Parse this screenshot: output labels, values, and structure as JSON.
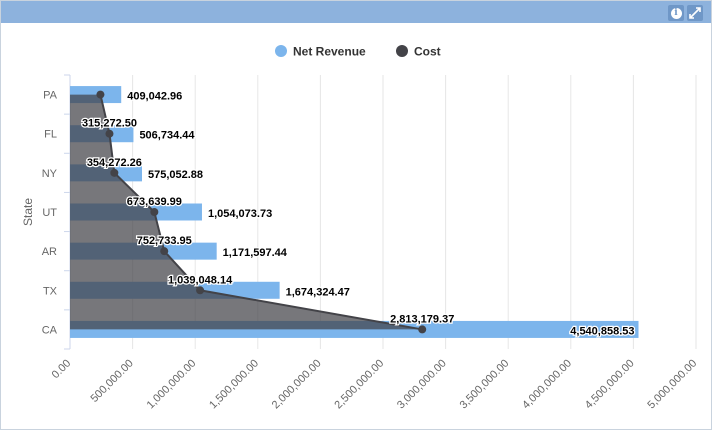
{
  "panel": {
    "info_icon": "info-icon",
    "expand_icon": "expand-icon"
  },
  "colors": {
    "net_revenue": "#7cb5ec",
    "cost": "#434348",
    "header": "#8db2dd",
    "gridline": "#e6e6e6"
  },
  "chart_data": {
    "type": "bar",
    "orientation": "horizontal",
    "title": "",
    "xlabel": "",
    "ylabel": "State",
    "categories": [
      "PA",
      "FL",
      "NY",
      "UT",
      "AR",
      "TX",
      "CA"
    ],
    "series": [
      {
        "name": "Net Revenue",
        "type": "bar",
        "values": [
          409042.96,
          506734.44,
          575052.88,
          1054073.73,
          1171597.44,
          1674324.47,
          4540858.53
        ],
        "labels": [
          "409,042.96",
          "506,734.44",
          "575,052.88",
          "1,054,073.73",
          "1,171,597.44",
          "1,674,324.47",
          "4,540,858.53"
        ]
      },
      {
        "name": "Cost",
        "type": "area",
        "values": [
          243000,
          315272.5,
          354272.26,
          673639.99,
          752733.95,
          1039048.14,
          2813179.37
        ],
        "labels": [
          "",
          "315,272.50",
          "354,272.26",
          "673,639.99",
          "752,733.95",
          "1,039,048.14",
          "2,813,179.37"
        ]
      }
    ],
    "xlim": [
      0,
      5000000
    ],
    "xticks": [
      0,
      500000,
      1000000,
      1500000,
      2000000,
      2500000,
      3000000,
      3500000,
      4000000,
      4500000,
      5000000
    ],
    "xtick_labels": [
      "0.00",
      "500,000.00",
      "1,000,000.00",
      "1,500,000.00",
      "2,000,000.00",
      "2,500,000.00",
      "3,000,000.00",
      "3,500,000.00",
      "4,000,000.00",
      "4,500,000.00",
      "5,000,000.00"
    ],
    "grid": true,
    "legend": "top-center"
  }
}
